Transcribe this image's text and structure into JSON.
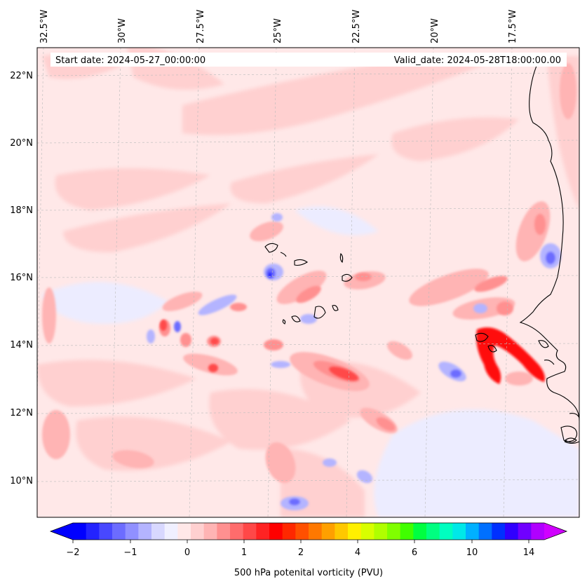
{
  "header": {
    "start_date": "Start date: 2024-05-27_00:00:00",
    "valid_date": "Valid_date: 2024-05-28T18:00:00.00"
  },
  "axes": {
    "lon_labels": [
      "32.5°W",
      "30°W",
      "27.5°W",
      "25°W",
      "22.5°W",
      "20°W",
      "17.5°W"
    ],
    "lat_labels": [
      "22°N",
      "20°N",
      "18°N",
      "16°N",
      "14°N",
      "12°N",
      "10°N"
    ]
  },
  "colorbar": {
    "label": "500 hPa potenital vorticity (PVU)",
    "tick_labels": [
      "−2",
      "−1",
      "0",
      "1",
      "2",
      "4",
      "6",
      "10",
      "14"
    ],
    "colors": [
      "#0000ff",
      "#2323ff",
      "#4848ff",
      "#6c6cff",
      "#9090ff",
      "#b4b4ff",
      "#d8d8ff",
      "#f0f0ff",
      "#ffe8e8",
      "#ffd0d0",
      "#ffb4b4",
      "#ff9090",
      "#ff6c6c",
      "#ff4848",
      "#ff2323",
      "#ff0000",
      "#ff2800",
      "#ff5000",
      "#ff7800",
      "#ffa000",
      "#ffc800",
      "#fff000",
      "#d8ff00",
      "#b0ff00",
      "#80ff00",
      "#40ff00",
      "#00ff40",
      "#00ff80",
      "#00ffc0",
      "#00e8e8",
      "#00b0ff",
      "#0070ff",
      "#0030ff",
      "#3000ff",
      "#7000ff",
      "#b000ff"
    ],
    "under_color": "#0000ff",
    "over_color": "#d000ff"
  },
  "map_colors": {
    "background": "#ffe8e8",
    "light_pink": "#ffd0d0",
    "pink": "#ffb4b4",
    "salmon": "#ff9090",
    "red": "#ff4848",
    "deep_red": "#ff1010",
    "pale_blue": "#ececff",
    "light_blue": "#b4b4ff",
    "blue": "#6c6cff",
    "deep_blue": "#2323ff",
    "coast": "#000000",
    "grid": "#bbbbbb"
  }
}
